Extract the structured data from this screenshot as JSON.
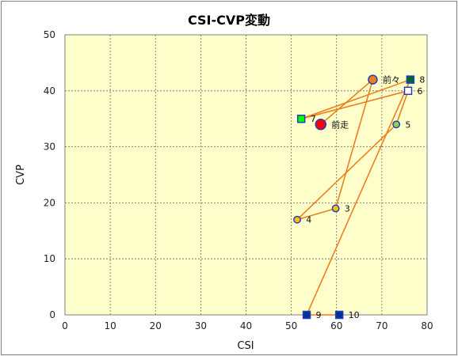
{
  "chart_data": {
    "type": "scatter",
    "title": "CSI-CVP変動",
    "xlabel": "CSI",
    "ylabel": "CVP",
    "xlim": [
      0,
      80
    ],
    "ylim": [
      0,
      50
    ],
    "xticks": [
      0,
      10,
      20,
      30,
      40,
      50,
      60,
      70,
      80
    ],
    "yticks": [
      0,
      10,
      20,
      30,
      40,
      50
    ],
    "grid": true,
    "plot_background": "#ffffcc",
    "line_color": "#ef7f1a",
    "points": [
      {
        "label": "前走",
        "x": 56.5,
        "y": 34,
        "marker": "circle",
        "size": "large",
        "fill": "#ff0000",
        "stroke": "#1f3fbf"
      },
      {
        "label": "前々",
        "x": 68,
        "y": 42,
        "marker": "circle",
        "size": "medium",
        "fill": "#ef7f1a",
        "stroke": "#1f3fbf"
      },
      {
        "label": "3",
        "x": 59.8,
        "y": 19,
        "marker": "circle",
        "size": "small",
        "fill": "#ffc000",
        "stroke": "#1f3fbf"
      },
      {
        "label": "4",
        "x": 51.3,
        "y": 17,
        "marker": "circle",
        "size": "small",
        "fill": "#ffc000",
        "stroke": "#1f3fbf"
      },
      {
        "label": "5",
        "x": 73.2,
        "y": 34,
        "marker": "circle",
        "size": "small",
        "fill": "#92d050",
        "stroke": "#1f3fbf"
      },
      {
        "label": "6",
        "x": 75.8,
        "y": 40,
        "marker": "square",
        "fill": "#ffffff",
        "stroke": "#1f3fbf"
      },
      {
        "label": "7",
        "x": 52.2,
        "y": 35,
        "marker": "square",
        "fill": "#00ff00",
        "stroke": "#1f3fbf"
      },
      {
        "label": "8",
        "x": 76.3,
        "y": 42,
        "marker": "square",
        "fill": "#006633",
        "stroke": "#1f3fbf"
      },
      {
        "label": "9",
        "x": 53.4,
        "y": 0,
        "marker": "square",
        "fill": "#003399",
        "stroke": "#1f3fbf"
      },
      {
        "label": "10",
        "x": 60.6,
        "y": 0,
        "marker": "square",
        "fill": "#003399",
        "stroke": "#1f3fbf"
      }
    ]
  }
}
